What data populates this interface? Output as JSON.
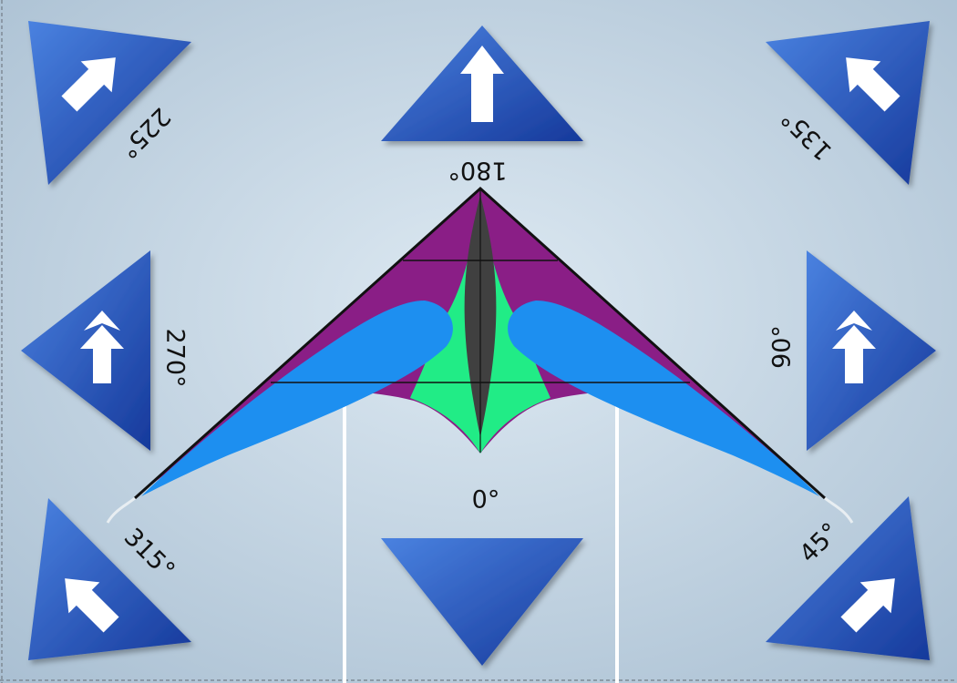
{
  "colors": {
    "background_light": "#dde9f2",
    "background_dark": "#a9bfd2",
    "tile_light": "#4a82e0",
    "tile_dark": "#16399b",
    "arrow": "#ffffff",
    "sail_purple": "#8a1e86",
    "sail_green": "#21ec86",
    "sail_blue": "#1d8ff0",
    "spine_gray": "#404040",
    "outline": "#111111",
    "line": "#ffffff"
  },
  "labels": {
    "top": "180°",
    "bottom": "0°",
    "left": "270°",
    "right": "90°",
    "top_left": "225°",
    "top_right": "135°",
    "bottom_left": "315°",
    "bottom_right": "45°"
  },
  "arrow_icons": [
    "arrow-up-icon",
    "arrow-up-right-icon",
    "arrow-up-left-icon",
    "double-arrow-up-icon",
    "double-arrow-up-icon",
    "arrow-up-left-icon",
    "arrow-up-right-icon"
  ]
}
